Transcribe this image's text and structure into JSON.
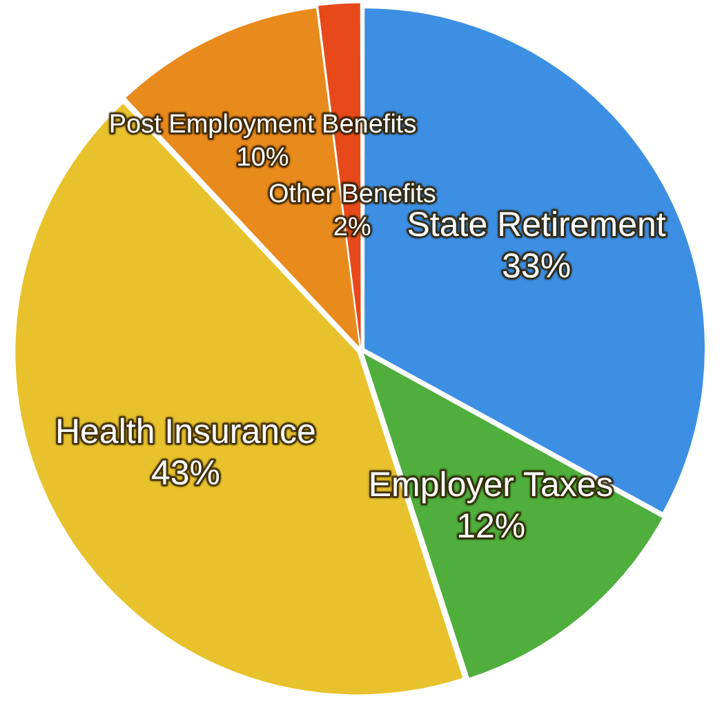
{
  "chart_data": {
    "type": "pie",
    "categories": [
      "State Retirement",
      "Employer Taxes",
      "Health Insurance",
      "Post Employment Benefits",
      "Other Benefits"
    ],
    "values": [
      33,
      12,
      43,
      10,
      2
    ],
    "value_labels": [
      "33%",
      "12%",
      "43%",
      "10%",
      "2%"
    ],
    "colors": [
      "#3d8fe3",
      "#4fae3c",
      "#e8c22c",
      "#e98a1c",
      "#e8491a"
    ],
    "legend": false
  }
}
